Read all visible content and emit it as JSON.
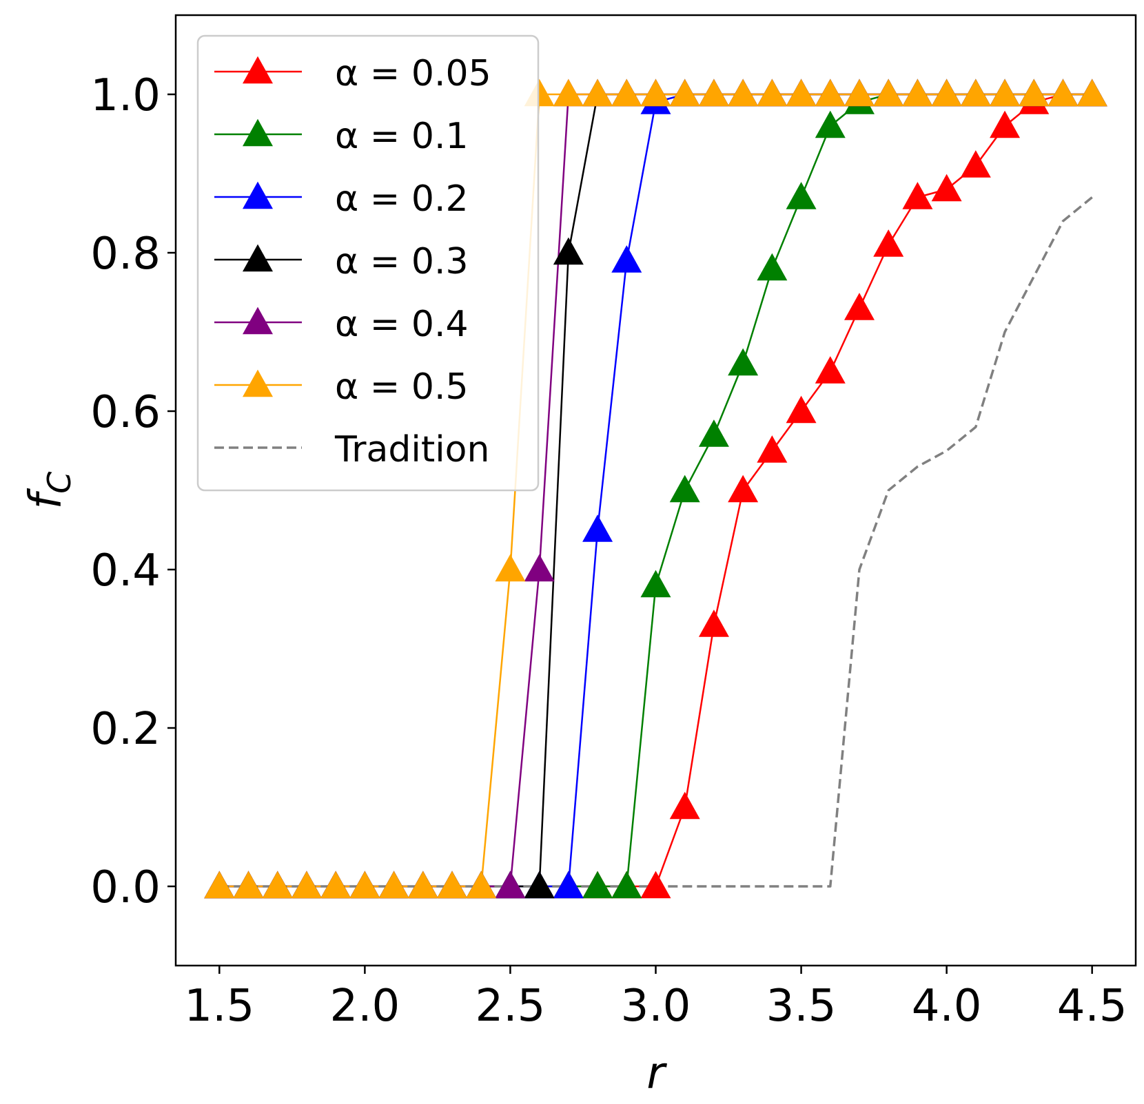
{
  "chart_data": {
    "type": "line",
    "title": "",
    "xlabel": "r",
    "ylabel": "f",
    "ylabel_subscript": "C",
    "xlim": [
      1.35,
      4.65
    ],
    "ylim": [
      -0.1,
      1.1
    ],
    "xticks": [
      1.5,
      2.0,
      2.5,
      3.0,
      3.5,
      4.0,
      4.5
    ],
    "xtick_labels": [
      "1.5",
      "2.0",
      "2.5",
      "3.0",
      "3.5",
      "4.0",
      "4.5"
    ],
    "yticks": [
      0.0,
      0.2,
      0.4,
      0.6,
      0.8,
      1.0
    ],
    "ytick_labels": [
      "0.0",
      "0.2",
      "0.4",
      "0.6",
      "0.8",
      "1.0"
    ],
    "grid": false,
    "legend_position": "top-left",
    "x": [
      1.5,
      1.6,
      1.7,
      1.8,
      1.9,
      2.0,
      2.1,
      2.2,
      2.3,
      2.4,
      2.5,
      2.6,
      2.7,
      2.8,
      2.9,
      3.0,
      3.1,
      3.2,
      3.3,
      3.4,
      3.5,
      3.6,
      3.7,
      3.8,
      3.9,
      4.0,
      4.1,
      4.2,
      4.3,
      4.4,
      4.5
    ],
    "series": [
      {
        "name": "α = 0.05",
        "color": "#ff0000",
        "marker": "triangle",
        "style": "solid",
        "values": [
          0,
          0,
          0,
          0,
          0,
          0,
          0,
          0,
          0,
          0,
          0,
          0,
          0,
          0,
          0,
          0,
          0.1,
          0.33,
          0.5,
          0.55,
          0.6,
          0.65,
          0.73,
          0.81,
          0.87,
          0.88,
          0.91,
          0.96,
          0.99,
          1.0,
          1.0
        ]
      },
      {
        "name": "α = 0.1",
        "color": "#008000",
        "marker": "triangle",
        "style": "solid",
        "values": [
          0,
          0,
          0,
          0,
          0,
          0,
          0,
          0,
          0,
          0,
          0,
          0,
          0,
          0,
          0,
          0.38,
          0.5,
          0.57,
          0.66,
          0.78,
          0.87,
          0.96,
          0.99,
          1.0,
          1.0,
          1.0,
          1.0,
          1.0,
          1.0,
          1.0,
          1.0
        ]
      },
      {
        "name": "α = 0.2",
        "color": "#0000ff",
        "marker": "triangle",
        "style": "solid",
        "values": [
          0,
          0,
          0,
          0,
          0,
          0,
          0,
          0,
          0,
          0,
          0,
          0,
          0,
          0.45,
          0.79,
          0.99,
          1.0,
          1.0,
          1.0,
          1.0,
          1.0,
          1.0,
          1.0,
          1.0,
          1.0,
          1.0,
          1.0,
          1.0,
          1.0,
          1.0,
          1.0
        ]
      },
      {
        "name": "α = 0.3",
        "color": "#000000",
        "marker": "triangle",
        "style": "solid",
        "values": [
          0,
          0,
          0,
          0,
          0,
          0,
          0,
          0,
          0,
          0,
          0,
          0,
          0.8,
          1.0,
          1.0,
          1.0,
          1.0,
          1.0,
          1.0,
          1.0,
          1.0,
          1.0,
          1.0,
          1.0,
          1.0,
          1.0,
          1.0,
          1.0,
          1.0,
          1.0,
          1.0
        ]
      },
      {
        "name": "α = 0.4",
        "color": "#800080",
        "marker": "triangle",
        "style": "solid",
        "values": [
          0,
          0,
          0,
          0,
          0,
          0,
          0,
          0,
          0,
          0,
          0,
          0.4,
          1.0,
          1.0,
          1.0,
          1.0,
          1.0,
          1.0,
          1.0,
          1.0,
          1.0,
          1.0,
          1.0,
          1.0,
          1.0,
          1.0,
          1.0,
          1.0,
          1.0,
          1.0,
          1.0
        ]
      },
      {
        "name": "α = 0.5",
        "color": "#ffa500",
        "marker": "triangle",
        "style": "solid",
        "values": [
          0,
          0,
          0,
          0,
          0,
          0,
          0,
          0,
          0,
          0,
          0.4,
          1.0,
          1.0,
          1.0,
          1.0,
          1.0,
          1.0,
          1.0,
          1.0,
          1.0,
          1.0,
          1.0,
          1.0,
          1.0,
          1.0,
          1.0,
          1.0,
          1.0,
          1.0,
          1.0,
          1.0
        ]
      },
      {
        "name": "Tradition",
        "color": "#808080",
        "marker": "none",
        "style": "dashed",
        "values": [
          0,
          0,
          0,
          0,
          0,
          0,
          0,
          0,
          0,
          0,
          0,
          0,
          0,
          0,
          0,
          0,
          0,
          0,
          0,
          0,
          0,
          0,
          0.4,
          0.5,
          0.53,
          0.55,
          0.58,
          0.7,
          0.77,
          0.84,
          0.87
        ]
      }
    ]
  }
}
